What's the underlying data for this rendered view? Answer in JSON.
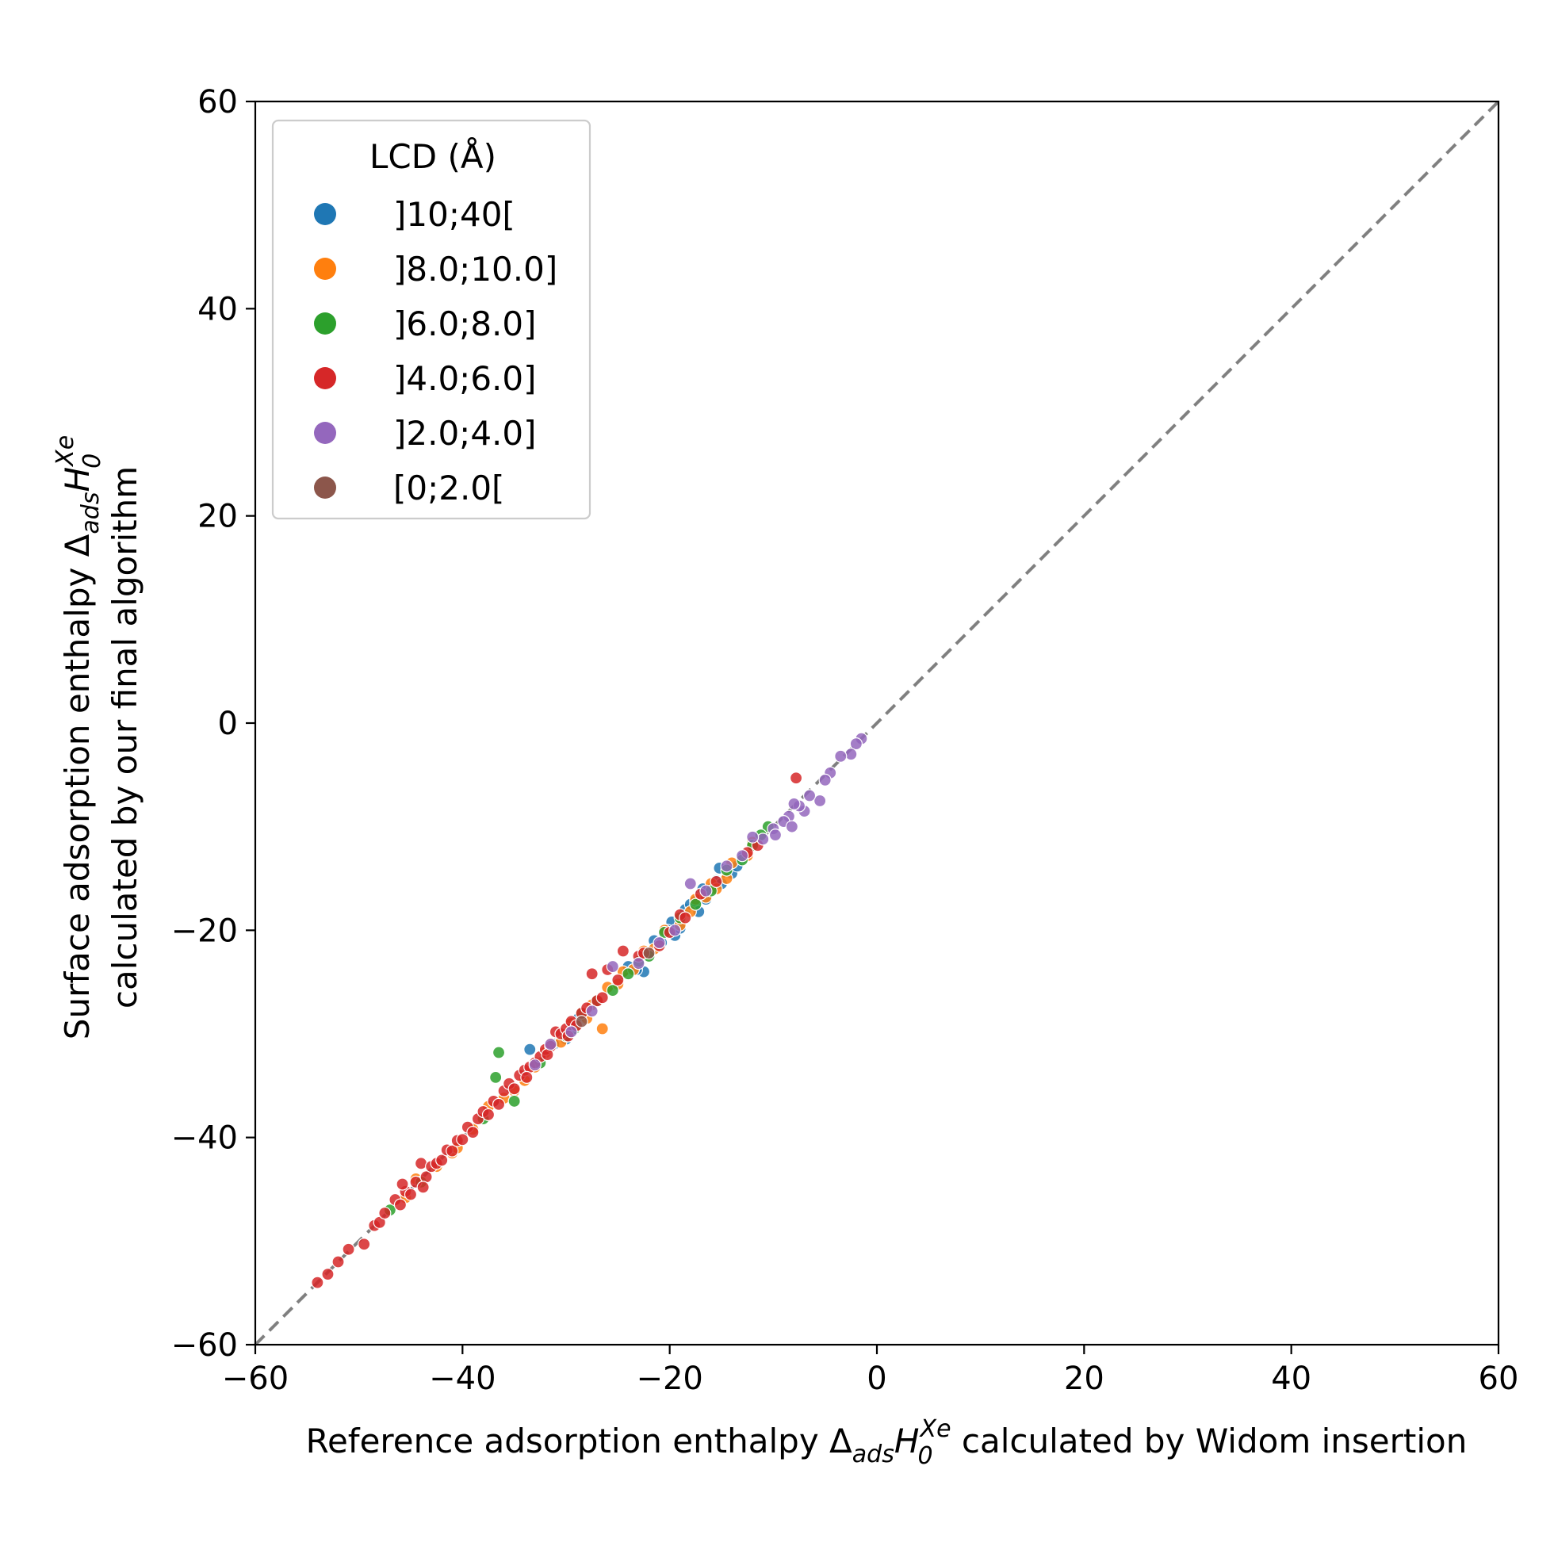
{
  "chart_data": {
    "type": "scatter",
    "title": "",
    "xlabel": {
      "prefix": "Reference adsorption enthalpy ",
      "delta": "Δ",
      "delta_sub": "ads",
      "H": "H",
      "H_sub": "0",
      "H_sup": "Xe",
      "suffix": " calculated by Widom insertion"
    },
    "ylabel": {
      "line1_prefix": "Surface adsorption enthalpy ",
      "delta": "Δ",
      "delta_sub": "ads",
      "H": "H",
      "H_sub": "0",
      "H_sup": "Xe",
      "line2": "calculated by our final algorithm"
    },
    "xlim": [
      -60,
      60
    ],
    "ylim": [
      -60,
      60
    ],
    "xticks": [
      -60,
      -40,
      -20,
      0,
      20,
      40,
      60
    ],
    "yticks": [
      -60,
      -40,
      -20,
      0,
      20,
      40,
      60
    ],
    "xtick_labels": [
      "−60",
      "−40",
      "−20",
      "0",
      "20",
      "40",
      "60"
    ],
    "ytick_labels": [
      "−60",
      "−40",
      "−20",
      "0",
      "20",
      "40",
      "60"
    ],
    "grid": false,
    "reference_line": {
      "style": "dashed",
      "color": "#808080",
      "from": [
        -60,
        -60
      ],
      "to": [
        60,
        60
      ]
    },
    "legend": {
      "title": "LCD (Å)",
      "placement": "upper-left",
      "entries": [
        "]10;40[",
        "]8.0;10.0]",
        "]6.0;8.0]",
        "]4.0;6.0]",
        "]2.0;4.0]",
        "[0;2.0["
      ]
    },
    "series": [
      {
        "name": "]10;40[",
        "color": "#1f77b4",
        "points": [
          [
            -33.5,
            -31.5
          ],
          [
            -19.8,
            -19.2
          ],
          [
            -19.5,
            -20.5
          ],
          [
            -19.0,
            -19.8
          ],
          [
            -18.5,
            -18.0
          ],
          [
            -18.0,
            -17.5
          ],
          [
            -17.5,
            -17.2
          ],
          [
            -17.0,
            -16.5
          ],
          [
            -16.5,
            -17.0
          ],
          [
            -16.0,
            -16.0
          ],
          [
            -15.5,
            -15.2
          ],
          [
            -15.0,
            -15.5
          ],
          [
            -14.5,
            -14.2
          ],
          [
            -14.0,
            -14.5
          ],
          [
            -13.5,
            -13.8
          ],
          [
            -13.0,
            -13.0
          ],
          [
            -16.8,
            -16.0
          ],
          [
            -22.0,
            -22.2
          ],
          [
            -22.5,
            -24.0
          ],
          [
            -21.5,
            -21.0
          ],
          [
            -20.8,
            -21.2
          ],
          [
            -20.2,
            -20.0
          ],
          [
            -24.0,
            -23.5
          ],
          [
            -23.2,
            -23.8
          ],
          [
            -30.0,
            -30.5
          ],
          [
            -29.5,
            -29.0
          ],
          [
            -28.8,
            -28.5
          ],
          [
            -31.2,
            -31.0
          ],
          [
            -15.2,
            -14.0
          ],
          [
            -17.2,
            -18.2
          ]
        ]
      },
      {
        "name": "]8.0;10.0]",
        "color": "#ff7f0e",
        "points": [
          [
            -45.5,
            -45.8
          ],
          [
            -44.5,
            -44.0
          ],
          [
            -41.0,
            -41.5
          ],
          [
            -39.0,
            -39.2
          ],
          [
            -37.5,
            -37.0
          ],
          [
            -35.0,
            -35.5
          ],
          [
            -33.0,
            -33.2
          ],
          [
            -31.5,
            -31.0
          ],
          [
            -30.5,
            -30.8
          ],
          [
            -29.5,
            -29.0
          ],
          [
            -28.0,
            -28.5
          ],
          [
            -27.5,
            -27.2
          ],
          [
            -26.5,
            -29.5
          ],
          [
            -26.0,
            -25.5
          ],
          [
            -25.0,
            -25.2
          ],
          [
            -24.5,
            -24.0
          ],
          [
            -23.5,
            -23.8
          ],
          [
            -22.5,
            -22.0
          ],
          [
            -21.5,
            -21.8
          ],
          [
            -20.5,
            -20.0
          ],
          [
            -19.0,
            -19.5
          ],
          [
            -18.0,
            -18.2
          ],
          [
            -17.5,
            -17.0
          ],
          [
            -16.5,
            -16.8
          ],
          [
            -16.0,
            -15.5
          ],
          [
            -15.5,
            -16.0
          ],
          [
            -14.5,
            -15.0
          ],
          [
            -14.0,
            -13.5
          ],
          [
            -12.5,
            -12.8
          ],
          [
            -12.0,
            -11.5
          ],
          [
            -40.5,
            -41.0
          ],
          [
            -32.0,
            -31.8
          ],
          [
            -34.0,
            -34.5
          ],
          [
            -36.0,
            -36.2
          ],
          [
            -42.5,
            -42.8
          ]
        ]
      },
      {
        "name": "]6.0;8.0]",
        "color": "#2ca02c",
        "points": [
          [
            -36.5,
            -31.8
          ],
          [
            -36.8,
            -34.2
          ],
          [
            -47.0,
            -47.0
          ],
          [
            -44.0,
            -44.3
          ],
          [
            -38.0,
            -38.2
          ],
          [
            -35.0,
            -36.5
          ],
          [
            -32.5,
            -32.8
          ],
          [
            -30.0,
            -30.2
          ],
          [
            -28.5,
            -28.0
          ],
          [
            -27.0,
            -26.8
          ],
          [
            -25.5,
            -25.8
          ],
          [
            -24.0,
            -24.2
          ],
          [
            -22.0,
            -22.5
          ],
          [
            -20.5,
            -20.2
          ],
          [
            -19.0,
            -18.8
          ],
          [
            -17.5,
            -17.5
          ],
          [
            -16.0,
            -16.2
          ],
          [
            -14.5,
            -14.2
          ],
          [
            -13.0,
            -13.2
          ],
          [
            -12.0,
            -11.8
          ],
          [
            -10.5,
            -10.0
          ],
          [
            -11.2,
            -10.8
          ],
          [
            -29.2,
            -29.5
          ],
          [
            -23.0,
            -23.0
          ]
        ]
      },
      {
        "name": "]4.0;6.0]",
        "color": "#d62728",
        "points": [
          [
            -54.0,
            -54.0
          ],
          [
            -53.0,
            -53.2
          ],
          [
            -52.0,
            -52.0
          ],
          [
            -51.0,
            -50.8
          ],
          [
            -49.5,
            -50.3
          ],
          [
            -48.5,
            -48.5
          ],
          [
            -48.0,
            -48.2
          ],
          [
            -47.5,
            -47.3
          ],
          [
            -46.5,
            -46.0
          ],
          [
            -46.0,
            -46.5
          ],
          [
            -45.5,
            -45.2
          ],
          [
            -45.0,
            -45.5
          ],
          [
            -44.5,
            -44.3
          ],
          [
            -44.0,
            -42.5
          ],
          [
            -43.5,
            -43.8
          ],
          [
            -43.0,
            -42.8
          ],
          [
            -42.5,
            -42.5
          ],
          [
            -42.0,
            -42.2
          ],
          [
            -41.5,
            -41.2
          ],
          [
            -41.0,
            -41.3
          ],
          [
            -40.5,
            -40.3
          ],
          [
            -40.0,
            -40.2
          ],
          [
            -39.5,
            -39.0
          ],
          [
            -39.0,
            -39.5
          ],
          [
            -38.5,
            -38.2
          ],
          [
            -38.0,
            -37.5
          ],
          [
            -37.5,
            -37.8
          ],
          [
            -37.0,
            -36.5
          ],
          [
            -36.5,
            -36.8
          ],
          [
            -36.0,
            -35.5
          ],
          [
            -35.5,
            -34.8
          ],
          [
            -35.0,
            -35.3
          ],
          [
            -34.5,
            -34.0
          ],
          [
            -34.0,
            -33.5
          ],
          [
            -33.5,
            -33.2
          ],
          [
            -33.0,
            -32.8
          ],
          [
            -32.5,
            -32.2
          ],
          [
            -32.0,
            -31.5
          ],
          [
            -31.5,
            -31.2
          ],
          [
            -31.0,
            -29.8
          ],
          [
            -30.5,
            -30.0
          ],
          [
            -30.0,
            -29.5
          ],
          [
            -29.5,
            -28.8
          ],
          [
            -29.0,
            -29.2
          ],
          [
            -28.5,
            -28.0
          ],
          [
            -28.0,
            -27.5
          ],
          [
            -27.5,
            -24.2
          ],
          [
            -27.0,
            -26.8
          ],
          [
            -26.5,
            -26.5
          ],
          [
            -26.0,
            -23.8
          ],
          [
            -25.0,
            -24.8
          ],
          [
            -24.5,
            -22.0
          ],
          [
            -23.0,
            -22.5
          ],
          [
            -22.5,
            -22.2
          ],
          [
            -21.0,
            -21.5
          ],
          [
            -20.0,
            -20.2
          ],
          [
            -19.0,
            -18.5
          ],
          [
            -18.5,
            -18.8
          ],
          [
            -17.0,
            -16.5
          ],
          [
            -15.5,
            -15.3
          ],
          [
            -12.5,
            -12.5
          ],
          [
            -11.5,
            -11.8
          ],
          [
            -7.8,
            -5.3
          ],
          [
            -43.8,
            -44.8
          ],
          [
            -33.8,
            -34.2
          ],
          [
            -31.8,
            -32.0
          ],
          [
            -29.8,
            -30.2
          ],
          [
            -45.8,
            -44.5
          ]
        ]
      },
      {
        "name": "]2.0;4.0]",
        "color": "#9467bd",
        "points": [
          [
            -1.5,
            -1.5
          ],
          [
            -2.0,
            -2.0
          ],
          [
            -2.5,
            -3.0
          ],
          [
            -3.5,
            -3.2
          ],
          [
            -4.5,
            -4.8
          ],
          [
            -5.0,
            -5.5
          ],
          [
            -5.5,
            -7.5
          ],
          [
            -6.5,
            -7.0
          ],
          [
            -7.0,
            -8.5
          ],
          [
            -7.5,
            -8.0
          ],
          [
            -8.0,
            -7.8
          ],
          [
            -8.5,
            -9.0
          ],
          [
            -9.0,
            -9.5
          ],
          [
            -10.0,
            -10.2
          ],
          [
            -11.0,
            -11.2
          ],
          [
            -12.0,
            -11.0
          ],
          [
            -13.0,
            -12.8
          ],
          [
            -14.5,
            -13.8
          ],
          [
            -16.5,
            -16.2
          ],
          [
            -18.0,
            -15.5
          ],
          [
            -19.5,
            -20.0
          ],
          [
            -21.0,
            -21.2
          ],
          [
            -23.0,
            -23.2
          ],
          [
            -25.5,
            -23.5
          ],
          [
            -27.5,
            -27.8
          ],
          [
            -29.5,
            -29.8
          ],
          [
            -31.5,
            -31.0
          ],
          [
            -33.0,
            -33.0
          ],
          [
            -8.2,
            -10.0
          ],
          [
            -9.8,
            -10.8
          ]
        ]
      },
      {
        "name": "[0;2.0[",
        "color": "#8c564b",
        "points": [
          [
            -28.5,
            -28.8
          ],
          [
            -22.0,
            -22.2
          ]
        ]
      }
    ]
  }
}
